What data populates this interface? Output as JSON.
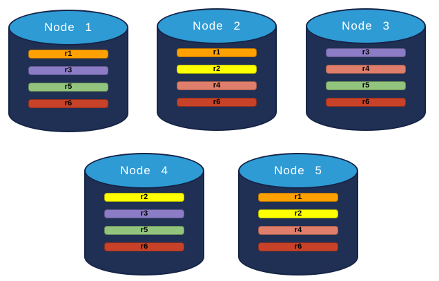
{
  "palette": {
    "background": "#FFFFFF",
    "cylinder_body": "#1F3054",
    "cylinder_outline": "#162446",
    "cylinder_top_fill": "#2E9BD5",
    "node_title_color": "#FFFFFF",
    "replica_label_color": "#000000"
  },
  "replica_colors": {
    "r1": "#FFA100",
    "r2": "#FFFF00",
    "r3": "#8B7CC5",
    "r4": "#DF7E6B",
    "r5": "#93C47D",
    "r6": "#C74228"
  },
  "nodes": [
    {
      "title": "Node 1",
      "replicas": [
        "r1",
        "r3",
        "r5",
        "r6"
      ]
    },
    {
      "title": "Node 2",
      "replicas": [
        "r1",
        "r2",
        "r4",
        "r6"
      ]
    },
    {
      "title": "Node 3",
      "replicas": [
        "r3",
        "r4",
        "r5",
        "r6"
      ]
    },
    {
      "title": "Node 4",
      "replicas": [
        "r2",
        "r3",
        "r5",
        "r6"
      ]
    },
    {
      "title": "Node 5",
      "replicas": [
        "r1",
        "r2",
        "r4",
        "r6"
      ]
    }
  ]
}
